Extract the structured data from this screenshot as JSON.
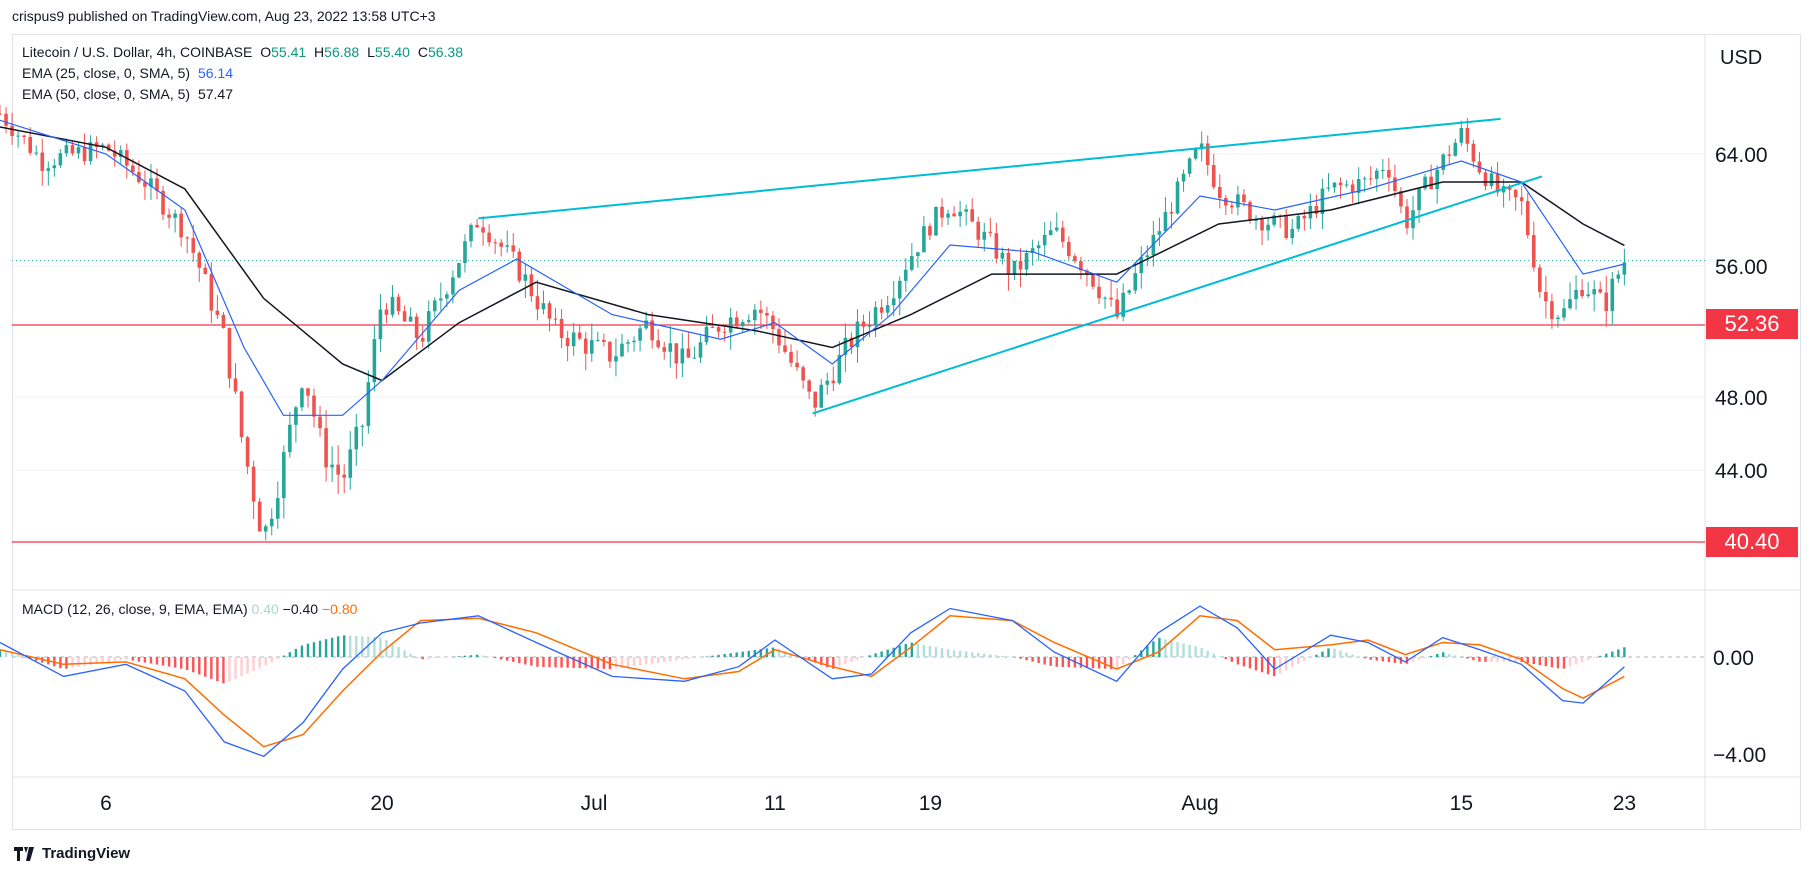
{
  "publisher_line": "crispus9 published on TradingView.com, Aug 23, 2022 13:58 UTC+3",
  "footer_brand": "TradingView",
  "legend": {
    "symbol": "Litecoin / U.S. Dollar, 4h, COINBASE",
    "ohlc": {
      "o_label": "O",
      "o": "55.41",
      "h_label": "H",
      "h": "56.88",
      "l_label": "L",
      "l": "55.40",
      "c_label": "C",
      "c": "56.38"
    },
    "ema25": {
      "label": "EMA (25, close, 0, SMA, 5)",
      "value": "56.14"
    },
    "ema50": {
      "label": "EMA (50, close, 0, SMA, 5)",
      "value": "57.47"
    },
    "macd": {
      "label": "MACD (12, 26, close, 9, EMA, EMA)",
      "hist": "0.40",
      "macd": "−0.40",
      "signal": "−0.80"
    }
  },
  "colors": {
    "up": "#26a69a",
    "down": "#ef5350",
    "ema25": "#2962ff",
    "ema50": "#131722",
    "trendline": "#00bcd4",
    "level": "#f23645",
    "macd_line": "#2962ff",
    "signal_line": "#ff6d00",
    "grid": "#f0f3fa",
    "current_price_line": "#26a69a"
  },
  "chart_data": {
    "type": "candlestick",
    "ylabel": "USD",
    "price_axis_ticks": [
      "64.00",
      "56.00",
      "48.00",
      "44.00"
    ],
    "x_axis_ticks": [
      "6",
      "20",
      "Jul",
      "11",
      "19",
      "Aug",
      "15",
      "23"
    ],
    "horizontal_levels": [
      {
        "price": 52.36,
        "label": "52.36"
      },
      {
        "price": 40.4,
        "label": "40.40"
      }
    ],
    "current_price": 56.38,
    "trendlines": [
      {
        "name": "upper",
        "from": {
          "x": "Jun 25",
          "price": 59.4
        },
        "to": {
          "x": "Aug 17",
          "price": 66.6
        }
      },
      {
        "name": "lower",
        "from": {
          "x": "Jul 13",
          "price": 47.1
        },
        "to": {
          "x": "Aug 19",
          "price": 62.4
        }
      }
    ],
    "price_path": [
      {
        "x": "Jun 1",
        "price": 67.0
      },
      {
        "x": "Jun 3",
        "price": 63.5
      },
      {
        "x": "Jun 6",
        "price": 64.5
      },
      {
        "x": "Jun 8",
        "price": 62.0
      },
      {
        "x": "Jun 10",
        "price": 58.5
      },
      {
        "x": "Jun 12",
        "price": 51.5
      },
      {
        "x": "Jun 13",
        "price": 45.0
      },
      {
        "x": "Jun 14",
        "price": 40.6
      },
      {
        "x": "Jun 15",
        "price": 44.5
      },
      {
        "x": "Jun 16",
        "price": 49.5
      },
      {
        "x": "Jun 17",
        "price": 45.0
      },
      {
        "x": "Jun 18",
        "price": 43.5
      },
      {
        "x": "Jun 19",
        "price": 46.5
      },
      {
        "x": "Jun 20",
        "price": 54.0
      },
      {
        "x": "Jun 22",
        "price": 51.5
      },
      {
        "x": "Jun 24",
        "price": 56.5
      },
      {
        "x": "Jun 25",
        "price": 59.4
      },
      {
        "x": "Jun 27",
        "price": 56.0
      },
      {
        "x": "Jun 29",
        "price": 52.0
      },
      {
        "x": "Jul 2",
        "price": 50.5
      },
      {
        "x": "Jul 4",
        "price": 52.5
      },
      {
        "x": "Jul 6",
        "price": 50.0
      },
      {
        "x": "Jul 8",
        "price": 52.5
      },
      {
        "x": "Jul 10",
        "price": 53.5
      },
      {
        "x": "Jul 11",
        "price": 52.0
      },
      {
        "x": "Jul 13",
        "price": 47.5
      },
      {
        "x": "Jul 15",
        "price": 51.5
      },
      {
        "x": "Jul 17",
        "price": 54.5
      },
      {
        "x": "Jul 19",
        "price": 59.0
      },
      {
        "x": "Jul 20",
        "price": 60.5
      },
      {
        "x": "Jul 22",
        "price": 57.5
      },
      {
        "x": "Jul 23",
        "price": 55.5
      },
      {
        "x": "Jul 25",
        "price": 58.5
      },
      {
        "x": "Jul 27",
        "price": 55.0
      },
      {
        "x": "Jul 28",
        "price": 52.8
      },
      {
        "x": "Jul 30",
        "price": 58.5
      },
      {
        "x": "Aug 1",
        "price": 64.5
      },
      {
        "x": "Aug 2",
        "price": 61.5
      },
      {
        "x": "Aug 4",
        "price": 59.5
      },
      {
        "x": "Aug 6",
        "price": 58.5
      },
      {
        "x": "Aug 8",
        "price": 61.5
      },
      {
        "x": "Aug 10",
        "price": 62.0
      },
      {
        "x": "Aug 11",
        "price": 63.5
      },
      {
        "x": "Aug 12",
        "price": 59.0
      },
      {
        "x": "Aug 13",
        "price": 61.5
      },
      {
        "x": "Aug 15",
        "price": 65.5
      },
      {
        "x": "Aug 16",
        "price": 63.0
      },
      {
        "x": "Aug 17",
        "price": 61.0
      },
      {
        "x": "Aug 18",
        "price": 60.5
      },
      {
        "x": "Aug 19",
        "price": 54.0
      },
      {
        "x": "Aug 20",
        "price": 53.0
      },
      {
        "x": "Aug 21",
        "price": 55.0
      },
      {
        "x": "Aug 22",
        "price": 53.5
      },
      {
        "x": "Aug 23",
        "price": 56.38
      }
    ],
    "ema25_path": [
      {
        "x": "Jun 1",
        "price": 66.5
      },
      {
        "x": "Jun 6",
        "price": 64.0
      },
      {
        "x": "Jun 10",
        "price": 60.0
      },
      {
        "x": "Jun 13",
        "price": 51.0
      },
      {
        "x": "Jun 15",
        "price": 47.0
      },
      {
        "x": "Jun 18",
        "price": 47.0
      },
      {
        "x": "Jun 20",
        "price": 49.0
      },
      {
        "x": "Jun 24",
        "price": 54.5
      },
      {
        "x": "Jun 27",
        "price": 56.5
      },
      {
        "x": "Jul 2",
        "price": 53.0
      },
      {
        "x": "Jul 8",
        "price": 51.5
      },
      {
        "x": "Jul 11",
        "price": 52.5
      },
      {
        "x": "Jul 14",
        "price": 50.0
      },
      {
        "x": "Jul 17",
        "price": 53.0
      },
      {
        "x": "Jul 20",
        "price": 57.5
      },
      {
        "x": "Jul 24",
        "price": 57.0
      },
      {
        "x": "Jul 28",
        "price": 55.0
      },
      {
        "x": "Aug 1",
        "price": 61.0
      },
      {
        "x": "Aug 5",
        "price": 60.0
      },
      {
        "x": "Aug 10",
        "price": 61.5
      },
      {
        "x": "Aug 15",
        "price": 63.5
      },
      {
        "x": "Aug 18",
        "price": 62.0
      },
      {
        "x": "Aug 21",
        "price": 55.5
      },
      {
        "x": "Aug 23",
        "price": 56.14
      }
    ],
    "ema50_path": [
      {
        "x": "Jun 1",
        "price": 66.0
      },
      {
        "x": "Jun 6",
        "price": 64.5
      },
      {
        "x": "Jun 10",
        "price": 61.5
      },
      {
        "x": "Jun 14",
        "price": 54.0
      },
      {
        "x": "Jun 18",
        "price": 50.0
      },
      {
        "x": "Jun 20",
        "price": 49.0
      },
      {
        "x": "Jun 24",
        "price": 52.5
      },
      {
        "x": "Jun 28",
        "price": 55.0
      },
      {
        "x": "Jul 4",
        "price": 53.0
      },
      {
        "x": "Jul 10",
        "price": 52.0
      },
      {
        "x": "Jul 14",
        "price": 51.0
      },
      {
        "x": "Jul 18",
        "price": 53.0
      },
      {
        "x": "Jul 22",
        "price": 55.5
      },
      {
        "x": "Jul 28",
        "price": 55.5
      },
      {
        "x": "Aug 2",
        "price": 59.0
      },
      {
        "x": "Aug 8",
        "price": 60.0
      },
      {
        "x": "Aug 14",
        "price": 62.0
      },
      {
        "x": "Aug 18",
        "price": 62.0
      },
      {
        "x": "Aug 21",
        "price": 59.0
      },
      {
        "x": "Aug 23",
        "price": 57.47
      }
    ],
    "macd_axis_ticks": [
      "0.00",
      "−4.00"
    ],
    "macd_path": [
      {
        "x": "Jun 1",
        "value": 0.6
      },
      {
        "x": "Jun 4",
        "value": -0.8
      },
      {
        "x": "Jun 7",
        "value": -0.3
      },
      {
        "x": "Jun 10",
        "value": -1.4
      },
      {
        "x": "Jun 12",
        "value": -3.5
      },
      {
        "x": "Jun 14",
        "value": -4.1
      },
      {
        "x": "Jun 16",
        "value": -2.7
      },
      {
        "x": "Jun 18",
        "value": -0.5
      },
      {
        "x": "Jun 20",
        "value": 1.0
      },
      {
        "x": "Jun 22",
        "value": 1.4
      },
      {
        "x": "Jun 25",
        "value": 1.7
      },
      {
        "x": "Jun 28",
        "value": 0.6
      },
      {
        "x": "Jul 2",
        "value": -0.8
      },
      {
        "x": "Jul 6",
        "value": -1.0
      },
      {
        "x": "Jul 9",
        "value": -0.4
      },
      {
        "x": "Jul 11",
        "value": 0.7
      },
      {
        "x": "Jul 14",
        "value": -0.9
      },
      {
        "x": "Jul 16",
        "value": -0.7
      },
      {
        "x": "Jul 18",
        "value": 1.0
      },
      {
        "x": "Jul 20",
        "value": 2.0
      },
      {
        "x": "Jul 23",
        "value": 1.5
      },
      {
        "x": "Jul 25",
        "value": 0.2
      },
      {
        "x": "Jul 28",
        "value": -1.0
      },
      {
        "x": "Jul 30",
        "value": 1.0
      },
      {
        "x": "Aug 1",
        "value": 2.1
      },
      {
        "x": "Aug 3",
        "value": 1.2
      },
      {
        "x": "Aug 5",
        "value": -0.5
      },
      {
        "x": "Aug 8",
        "value": 0.9
      },
      {
        "x": "Aug 10",
        "value": 0.6
      },
      {
        "x": "Aug 12",
        "value": -0.2
      },
      {
        "x": "Aug 14",
        "value": 0.8
      },
      {
        "x": "Aug 16",
        "value": 0.3
      },
      {
        "x": "Aug 18",
        "value": -0.3
      },
      {
        "x": "Aug 20",
        "value": -1.8
      },
      {
        "x": "Aug 21",
        "value": -1.9
      },
      {
        "x": "Aug 23",
        "value": -0.4
      }
    ],
    "signal_path": [
      {
        "x": "Jun 1",
        "value": 0.3
      },
      {
        "x": "Jun 4",
        "value": -0.3
      },
      {
        "x": "Jun 7",
        "value": -0.2
      },
      {
        "x": "Jun 10",
        "value": -0.9
      },
      {
        "x": "Jun 12",
        "value": -2.4
      },
      {
        "x": "Jun 14",
        "value": -3.7
      },
      {
        "x": "Jun 16",
        "value": -3.2
      },
      {
        "x": "Jun 18",
        "value": -1.4
      },
      {
        "x": "Jun 20",
        "value": 0.2
      },
      {
        "x": "Jun 22",
        "value": 1.5
      },
      {
        "x": "Jun 25",
        "value": 1.6
      },
      {
        "x": "Jun 28",
        "value": 1.0
      },
      {
        "x": "Jul 2",
        "value": -0.3
      },
      {
        "x": "Jul 6",
        "value": -0.9
      },
      {
        "x": "Jul 9",
        "value": -0.6
      },
      {
        "x": "Jul 11",
        "value": 0.3
      },
      {
        "x": "Jul 14",
        "value": -0.4
      },
      {
        "x": "Jul 16",
        "value": -0.8
      },
      {
        "x": "Jul 18",
        "value": 0.4
      },
      {
        "x": "Jul 20",
        "value": 1.7
      },
      {
        "x": "Jul 23",
        "value": 1.5
      },
      {
        "x": "Jul 25",
        "value": 0.6
      },
      {
        "x": "Jul 28",
        "value": -0.5
      },
      {
        "x": "Jul 30",
        "value": 0.2
      },
      {
        "x": "Aug 1",
        "value": 1.7
      },
      {
        "x": "Aug 3",
        "value": 1.5
      },
      {
        "x": "Aug 5",
        "value": 0.3
      },
      {
        "x": "Aug 8",
        "value": 0.5
      },
      {
        "x": "Aug 10",
        "value": 0.7
      },
      {
        "x": "Aug 12",
        "value": 0.1
      },
      {
        "x": "Aug 14",
        "value": 0.6
      },
      {
        "x": "Aug 16",
        "value": 0.5
      },
      {
        "x": "Aug 18",
        "value": -0.1
      },
      {
        "x": "Aug 20",
        "value": -1.3
      },
      {
        "x": "Aug 21",
        "value": -1.7
      },
      {
        "x": "Aug 23",
        "value": -0.8
      }
    ],
    "macd_histogram_last": 0.4
  }
}
